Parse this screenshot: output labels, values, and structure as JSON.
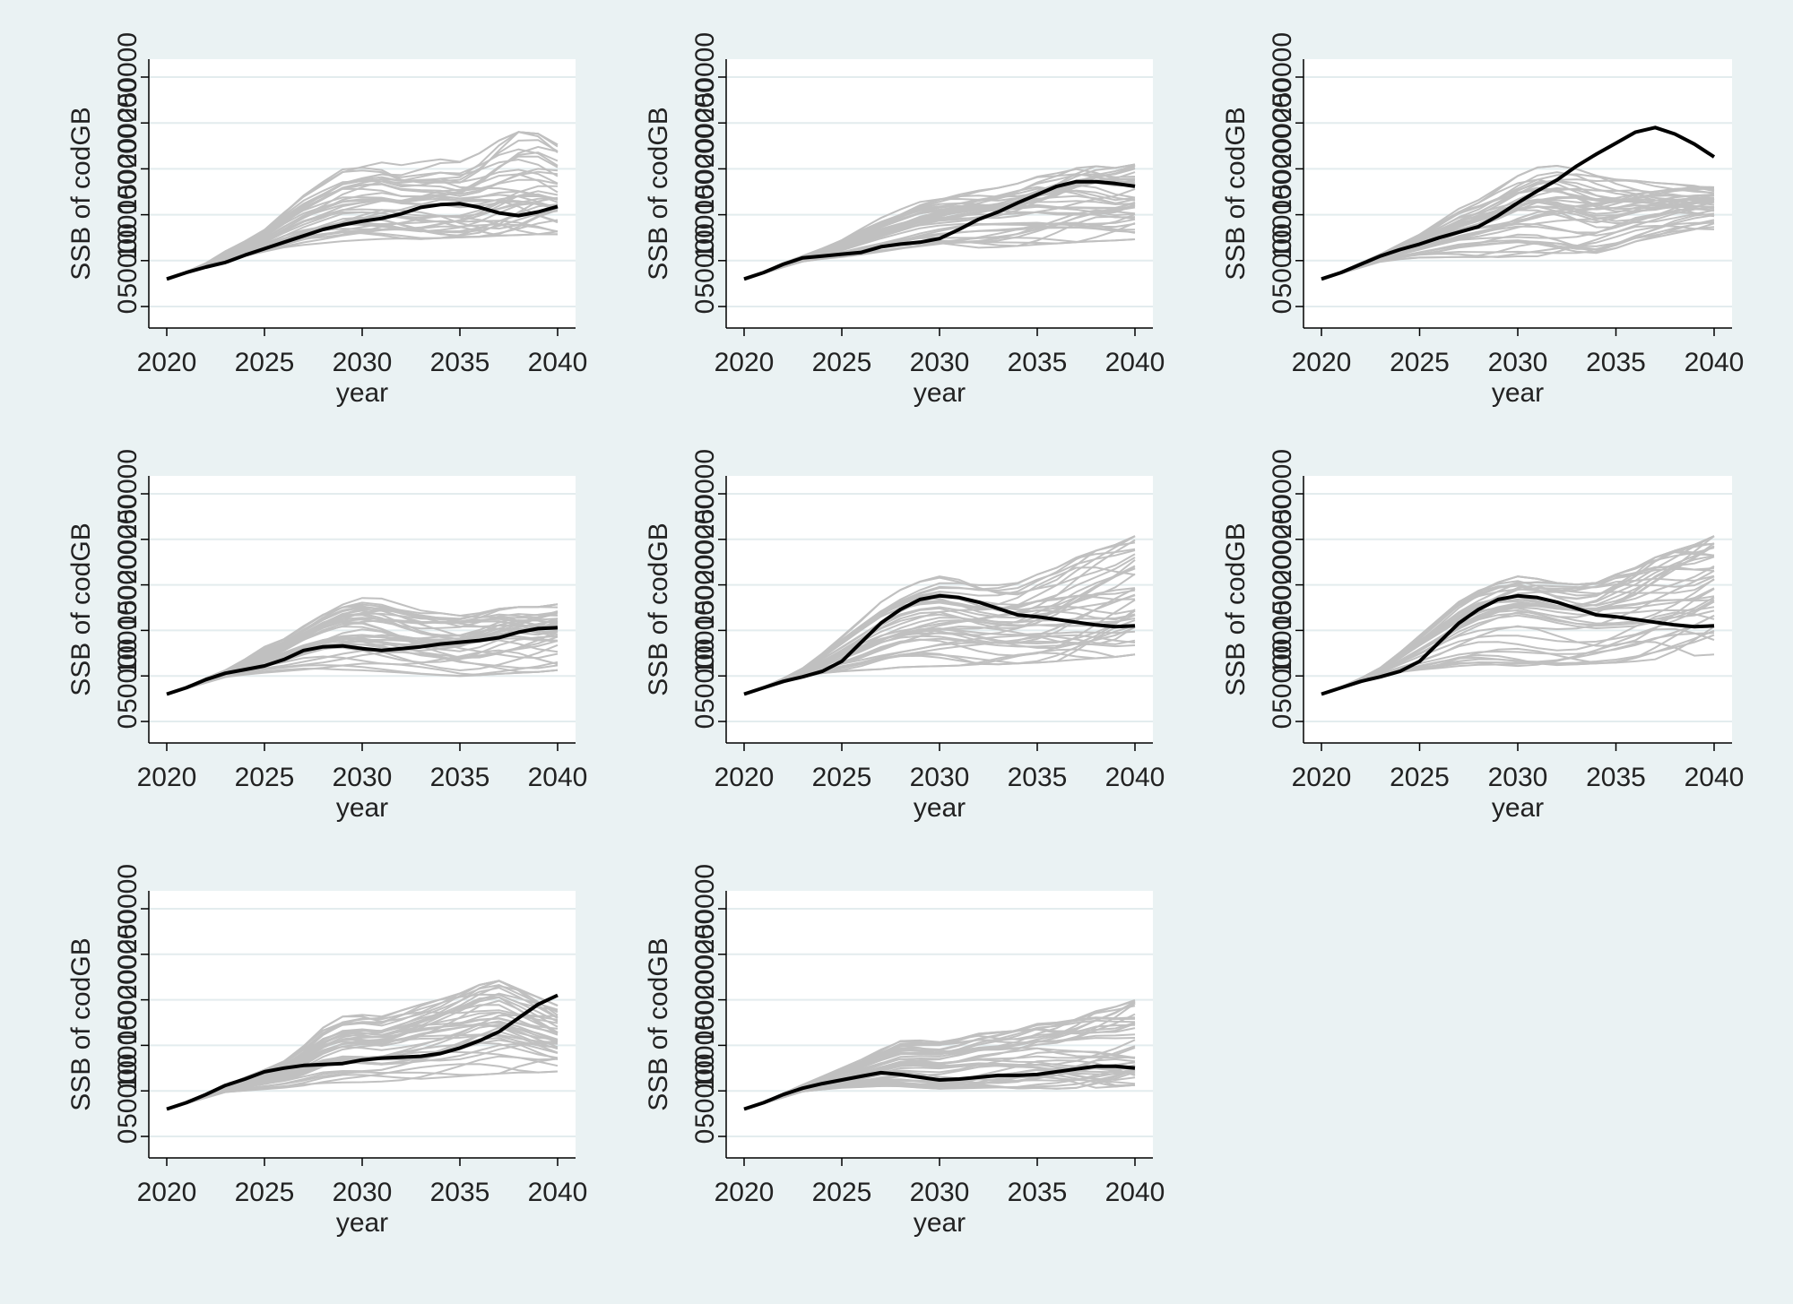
{
  "colors": {
    "background": "#eaf2f3",
    "plot_area": "#ffffff",
    "gridline": "#e3ecee",
    "axis": "#000000",
    "replicate_series": "#c0c0c0",
    "highlight_series": "#000000"
  },
  "chart_data": [
    {
      "type": "line",
      "xlabel": "year",
      "ylabel": "SSB of codGB",
      "xlim": [
        2020,
        2040
      ],
      "ylim": [
        0,
        250000
      ],
      "xticks": [
        "2020",
        "2025",
        "2030",
        "2035",
        "2040"
      ],
      "yticks": [
        "0",
        "50000",
        "100000",
        "150000",
        "200000",
        "250000"
      ],
      "grid": true,
      "x": [
        2020,
        2021,
        2022,
        2023,
        2024,
        2025,
        2026,
        2027,
        2028,
        2029,
        2030,
        2031,
        2032,
        2033,
        2034,
        2035,
        2036,
        2037,
        2038,
        2039,
        2040
      ],
      "series": [
        {
          "role": "highlight",
          "values": [
            30000,
            37000,
            43000,
            48000,
            56000,
            63000,
            70000,
            77000,
            84000,
            89000,
            93000,
            96000,
            101000,
            108000,
            111000,
            112000,
            108000,
            102000,
            99000,
            103000,
            109000
          ]
        }
      ],
      "replicates": {
        "count": 40,
        "upper": [
          30000,
          38000,
          48000,
          62000,
          74000,
          88000,
          110000,
          130000,
          145000,
          160000,
          165000,
          168000,
          162000,
          165000,
          168000,
          165000,
          175000,
          190000,
          200000,
          198000,
          185000
        ],
        "lower": [
          30000,
          36000,
          42000,
          48000,
          53000,
          57000,
          60000,
          62000,
          63000,
          64000,
          65000,
          66000,
          67000,
          66000,
          67000,
          68000,
          68000,
          68000,
          68000,
          69000,
          70000
        ]
      }
    },
    {
      "type": "line",
      "xlabel": "year",
      "ylabel": "SSB of codGB",
      "xlim": [
        2020,
        2040
      ],
      "ylim": [
        0,
        250000
      ],
      "xticks": [
        "2020",
        "2025",
        "2030",
        "2035",
        "2040"
      ],
      "yticks": [
        "0",
        "50000",
        "100000",
        "150000",
        "200000",
        "250000"
      ],
      "grid": true,
      "x": [
        2020,
        2021,
        2022,
        2023,
        2024,
        2025,
        2026,
        2027,
        2028,
        2029,
        2030,
        2031,
        2032,
        2033,
        2034,
        2035,
        2036,
        2037,
        2038,
        2039,
        2040
      ],
      "series": [
        {
          "role": "highlight",
          "values": [
            30000,
            37000,
            46000,
            53000,
            55000,
            57000,
            59000,
            65000,
            68000,
            70000,
            74000,
            84000,
            95000,
            103000,
            113000,
            122000,
            131000,
            136000,
            136000,
            134000,
            131000
          ]
        }
      ],
      "replicates": {
        "count": 40,
        "upper": [
          30000,
          38000,
          48000,
          56000,
          65000,
          75000,
          88000,
          100000,
          110000,
          120000,
          126000,
          130000,
          133000,
          135000,
          140000,
          148000,
          152000,
          158000,
          160000,
          158000,
          162000
        ],
        "lower": [
          30000,
          36000,
          42000,
          48000,
          50000,
          51000,
          52000,
          53000,
          54000,
          55000,
          56000,
          57000,
          58000,
          59000,
          60000,
          61000,
          62000,
          63000,
          64000,
          65000,
          66000
        ]
      }
    },
    {
      "type": "line",
      "xlabel": "year",
      "ylabel": "SSB of codGB",
      "xlim": [
        2020,
        2040
      ],
      "ylim": [
        0,
        250000
      ],
      "xticks": [
        "2020",
        "2025",
        "2030",
        "2035",
        "2040"
      ],
      "yticks": [
        "0",
        "50000",
        "100000",
        "150000",
        "200000",
        "250000"
      ],
      "grid": true,
      "x": [
        2020,
        2021,
        2022,
        2023,
        2024,
        2025,
        2026,
        2027,
        2028,
        2029,
        2030,
        2031,
        2032,
        2033,
        2034,
        2035,
        2036,
        2037,
        2038,
        2039,
        2040
      ],
      "series": [
        {
          "role": "highlight",
          "values": [
            30000,
            37000,
            46000,
            55000,
            62000,
            68000,
            75000,
            81000,
            87000,
            99000,
            113000,
            126000,
            138000,
            153000,
            166000,
            178000,
            190000,
            195000,
            188000,
            177000,
            163000
          ]
        }
      ],
      "replicates": {
        "count": 40,
        "upper": [
          30000,
          38000,
          48000,
          58000,
          70000,
          82000,
          98000,
          114000,
          124000,
          137000,
          150000,
          160000,
          162000,
          158000,
          150000,
          145000,
          143000,
          140000,
          138000,
          136000,
          134000
        ],
        "lower": [
          30000,
          36000,
          42000,
          48000,
          50000,
          51000,
          50000,
          49000,
          48000,
          47000,
          47000,
          46000,
          46000,
          47000,
          50000,
          57000,
          65000,
          70000,
          75000,
          78000,
          80000
        ]
      }
    },
    {
      "type": "line",
      "xlabel": "year",
      "ylabel": "SSB of codGB",
      "xlim": [
        2020,
        2040
      ],
      "ylim": [
        0,
        250000
      ],
      "xticks": [
        "2020",
        "2025",
        "2030",
        "2035",
        "2040"
      ],
      "yticks": [
        "0",
        "50000",
        "100000",
        "150000",
        "200000",
        "250000"
      ],
      "grid": true,
      "x": [
        2020,
        2021,
        2022,
        2023,
        2024,
        2025,
        2026,
        2027,
        2028,
        2029,
        2030,
        2031,
        2032,
        2033,
        2034,
        2035,
        2036,
        2037,
        2038,
        2039,
        2040
      ],
      "series": [
        {
          "role": "highlight",
          "values": [
            30000,
            37000,
            46000,
            53000,
            57000,
            61000,
            68000,
            78000,
            82000,
            83000,
            80000,
            78000,
            80000,
            82000,
            85000,
            87000,
            89000,
            92000,
            98000,
            102000,
            103000
          ]
        }
      ],
      "replicates": {
        "count": 40,
        "upper": [
          30000,
          38000,
          48000,
          57000,
          70000,
          85000,
          95000,
          112000,
          128000,
          140000,
          145000,
          142000,
          135000,
          128000,
          125000,
          122000,
          125000,
          130000,
          132000,
          132000,
          135000
        ],
        "lower": [
          30000,
          36000,
          42000,
          48000,
          50000,
          51000,
          52000,
          52000,
          51000,
          50000,
          49000,
          48000,
          47000,
          46000,
          45000,
          44000,
          45000,
          46000,
          47000,
          48000,
          50000
        ]
      }
    },
    {
      "type": "line",
      "xlabel": "year",
      "ylabel": "SSB of codGB",
      "xlim": [
        2020,
        2040
      ],
      "ylim": [
        0,
        250000
      ],
      "xticks": [
        "2020",
        "2025",
        "2030",
        "2035",
        "2040"
      ],
      "yticks": [
        "0",
        "50000",
        "100000",
        "150000",
        "200000",
        "250000"
      ],
      "grid": true,
      "x": [
        2020,
        2021,
        2022,
        2023,
        2024,
        2025,
        2026,
        2027,
        2028,
        2029,
        2030,
        2031,
        2032,
        2033,
        2034,
        2035,
        2036,
        2037,
        2038,
        2039,
        2040
      ],
      "series": [
        {
          "role": "highlight",
          "values": [
            30000,
            37000,
            44000,
            49000,
            55000,
            66000,
            87000,
            108000,
            123000,
            134000,
            138000,
            136000,
            131000,
            124000,
            117000,
            115000,
            112000,
            109000,
            106000,
            104000,
            105000
          ]
        }
      ],
      "replicates": {
        "count": 40,
        "upper": [
          30000,
          38000,
          48000,
          60000,
          78000,
          98000,
          118000,
          138000,
          152000,
          162000,
          168000,
          165000,
          160000,
          158000,
          160000,
          170000,
          178000,
          190000,
          198000,
          205000,
          215000
        ],
        "lower": [
          30000,
          36000,
          42000,
          48000,
          50000,
          50000,
          50000,
          51000,
          52000,
          52000,
          52000,
          53000,
          54000,
          55000,
          56000,
          56000,
          57000,
          58000,
          59000,
          60000,
          62000
        ]
      }
    },
    {
      "type": "line",
      "xlabel": "year",
      "ylabel": "SSB of codGB",
      "xlim": [
        2020,
        2040
      ],
      "ylim": [
        0,
        250000
      ],
      "xticks": [
        "2020",
        "2025",
        "2030",
        "2035",
        "2040"
      ],
      "yticks": [
        "0",
        "50000",
        "100000",
        "150000",
        "200000",
        "250000"
      ],
      "grid": true,
      "x": [
        2020,
        2021,
        2022,
        2023,
        2024,
        2025,
        2026,
        2027,
        2028,
        2029,
        2030,
        2031,
        2032,
        2033,
        2034,
        2035,
        2036,
        2037,
        2038,
        2039,
        2040
      ],
      "series": [
        {
          "role": "highlight",
          "values": [
            30000,
            37000,
            44000,
            49000,
            55000,
            66000,
            87000,
            108000,
            123000,
            134000,
            138000,
            136000,
            131000,
            124000,
            117000,
            115000,
            112000,
            109000,
            106000,
            104000,
            105000
          ]
        }
      ],
      "replicates": {
        "count": 40,
        "upper": [
          30000,
          38000,
          48000,
          60000,
          78000,
          98000,
          118000,
          138000,
          152000,
          162000,
          168000,
          165000,
          160000,
          158000,
          160000,
          170000,
          178000,
          190000,
          198000,
          205000,
          215000
        ],
        "lower": [
          30000,
          36000,
          42000,
          48000,
          50000,
          50000,
          50000,
          51000,
          52000,
          52000,
          52000,
          53000,
          54000,
          55000,
          56000,
          56000,
          57000,
          58000,
          59000,
          60000,
          62000
        ]
      }
    },
    {
      "type": "line",
      "xlabel": "year",
      "ylabel": "SSB of codGB",
      "xlim": [
        2020,
        2040
      ],
      "ylim": [
        0,
        250000
      ],
      "xticks": [
        "2020",
        "2025",
        "2030",
        "2035",
        "2040"
      ],
      "yticks": [
        "0",
        "50000",
        "100000",
        "150000",
        "200000",
        "250000"
      ],
      "grid": true,
      "x": [
        2020,
        2021,
        2022,
        2023,
        2024,
        2025,
        2026,
        2027,
        2028,
        2029,
        2030,
        2031,
        2032,
        2033,
        2034,
        2035,
        2036,
        2037,
        2038,
        2039,
        2040
      ],
      "series": [
        {
          "role": "highlight",
          "values": [
            30000,
            37000,
            46000,
            56000,
            63000,
            71000,
            75000,
            78000,
            79000,
            80000,
            84000,
            86000,
            87000,
            88000,
            91000,
            97000,
            105000,
            115000,
            130000,
            145000,
            155000
          ]
        }
      ],
      "replicates": {
        "count": 40,
        "upper": [
          30000,
          38000,
          47000,
          56000,
          66000,
          75000,
          85000,
          103000,
          125000,
          138000,
          140000,
          138000,
          145000,
          152000,
          158000,
          165000,
          175000,
          180000,
          170000,
          160000,
          150000
        ],
        "lower": [
          30000,
          36000,
          42000,
          48000,
          49000,
          50000,
          51000,
          52000,
          53000,
          53000,
          53000,
          54000,
          55000,
          56000,
          57000,
          58000,
          59000,
          60000,
          62000,
          63000,
          65000
        ]
      }
    },
    {
      "type": "line",
      "xlabel": "year",
      "ylabel": "SSB of codGB",
      "xlim": [
        2020,
        2040
      ],
      "ylim": [
        0,
        250000
      ],
      "xticks": [
        "2020",
        "2025",
        "2030",
        "2035",
        "2040"
      ],
      "yticks": [
        "0",
        "50000",
        "100000",
        "150000",
        "200000",
        "250000"
      ],
      "grid": true,
      "x": [
        2020,
        2021,
        2022,
        2023,
        2024,
        2025,
        2026,
        2027,
        2028,
        2029,
        2030,
        2031,
        2032,
        2033,
        2034,
        2035,
        2036,
        2037,
        2038,
        2039,
        2040
      ],
      "series": [
        {
          "role": "highlight",
          "values": [
            30000,
            37000,
            46000,
            53000,
            58000,
            62000,
            66000,
            70000,
            68000,
            65000,
            62000,
            63000,
            65000,
            67000,
            67000,
            68000,
            71000,
            74000,
            77000,
            77000,
            75000
          ]
        }
      ],
      "replicates": {
        "count": 40,
        "upper": [
          30000,
          38000,
          48000,
          58000,
          68000,
          78000,
          88000,
          100000,
          110000,
          110000,
          108000,
          112000,
          118000,
          120000,
          124000,
          130000,
          132000,
          138000,
          145000,
          150000,
          158000
        ],
        "lower": [
          30000,
          36000,
          42000,
          48000,
          49000,
          50000,
          50000,
          50000,
          50000,
          49000,
          48000,
          48000,
          48000,
          48000,
          47000,
          47000,
          46000,
          45000,
          46000,
          47000,
          48000
        ]
      }
    }
  ]
}
